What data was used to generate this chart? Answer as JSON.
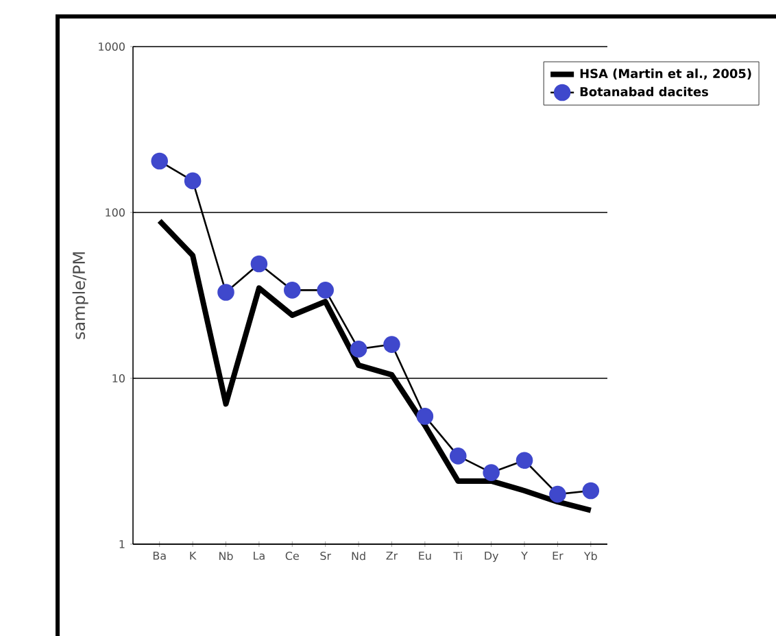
{
  "chart_data": {
    "type": "line",
    "ylabel": "sample/PM",
    "categories": [
      "Ba",
      "K",
      "Nb",
      "La",
      "Ce",
      "Sr",
      "Nd",
      "Zr",
      "Eu",
      "Ti",
      "Dy",
      "Y",
      "Er",
      "Yb"
    ],
    "log": "y",
    "ylim": [
      1,
      1000
    ],
    "yticks": [
      1,
      10,
      100,
      1000
    ],
    "grid": "y",
    "legend": "top right",
    "series": [
      {
        "name": "HSA (Martin et al., 2005)",
        "color": "#000000",
        "marker": "none",
        "values": [
          89,
          55,
          7,
          35,
          24,
          29,
          12,
          10.5,
          5.2,
          2.4,
          2.4,
          2.1,
          1.8,
          1.6
        ]
      },
      {
        "name": "Botanabad dacites",
        "color": "#3f48cc",
        "marker": "circle",
        "values": [
          204,
          155,
          33,
          49,
          34,
          34,
          15,
          16,
          5.9,
          3.4,
          2.7,
          3.2,
          2.0,
          2.1
        ]
      }
    ]
  }
}
